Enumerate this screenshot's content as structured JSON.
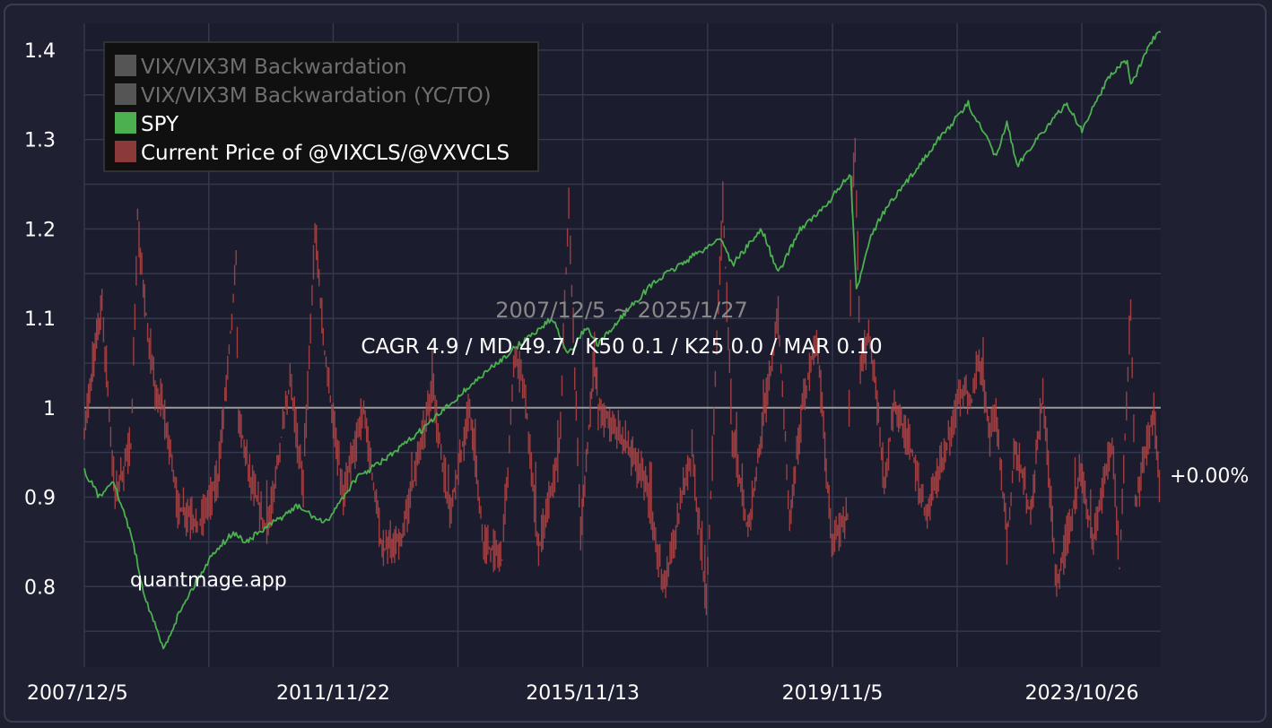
{
  "chart_data": {
    "type": "line",
    "title": "",
    "date_range": "2007/12/5 ~ 2025/1/27",
    "stats": "CAGR 4.9 / MD 49.7 / K50 0.1 / K25 0.0 / MAR 0.10",
    "watermark": "quantmage.app",
    "right_label": "+0.00%",
    "xlabel": "",
    "ylabel": "",
    "ylim": [
      0.71,
      1.43
    ],
    "yticks": [
      0.8,
      0.9,
      1,
      1.1,
      1.2,
      1.3,
      1.4
    ],
    "ytick_labels": [
      "0.8",
      "0.9",
      "1",
      "1.1",
      "1.2",
      "1.3",
      "1.4"
    ],
    "xlim": [
      "2007-12-05",
      "2025-01-27"
    ],
    "xticks": [
      "2007-12-05",
      "2011-11-22",
      "2015-11-13",
      "2019-11-05",
      "2023-10-26"
    ],
    "xtick_labels": [
      "2007/12/5",
      "2011/11/22",
      "2015/11/13",
      "2019/11/5",
      "2023/10/26"
    ],
    "reference_line": 1,
    "grid": true,
    "legend_position": "top-left",
    "legend": [
      {
        "label": "VIX/VIX3M Backwardation",
        "color": "#555555",
        "enabled": false
      },
      {
        "label": "VIX/VIX3M Backwardation (YC/TO)",
        "color": "#555555",
        "enabled": false
      },
      {
        "label": "SPY",
        "color": "#4caf50",
        "enabled": true
      },
      {
        "label": "Current Price of @VIXCLS/@VXVCLS",
        "color": "#8b3a3a",
        "enabled": true
      }
    ],
    "series": [
      {
        "name": "SPY",
        "color": "#4caf50",
        "x": [
          "2007-12-05",
          "2008-03-01",
          "2008-05-15",
          "2008-09-01",
          "2008-11-20",
          "2009-03-09",
          "2009-07-01",
          "2010-01-01",
          "2010-04-20",
          "2010-07-01",
          "2011-04-29",
          "2011-10-03",
          "2012-03-30",
          "2012-11-15",
          "2013-05-20",
          "2013-12-31",
          "2014-09-01",
          "2015-05-20",
          "2015-08-25",
          "2015-12-01",
          "2016-02-11",
          "2016-08-01",
          "2017-01-01",
          "2017-06-01",
          "2018-01-26",
          "2018-04-01",
          "2018-09-20",
          "2018-12-24",
          "2019-04-30",
          "2019-09-01",
          "2019-12-31",
          "2020-02-19",
          "2020-03-23",
          "2020-06-08",
          "2020-09-02",
          "2021-01-01",
          "2021-06-01",
          "2022-01-03",
          "2022-06-16",
          "2022-08-16",
          "2022-10-12",
          "2023-02-01",
          "2023-07-31",
          "2023-10-27",
          "2024-03-28",
          "2024-07-16",
          "2024-08-05",
          "2024-12-06",
          "2025-01-27"
        ],
        "values": [
          0.93,
          0.9,
          0.92,
          0.86,
          0.79,
          0.73,
          0.78,
          0.84,
          0.86,
          0.85,
          0.89,
          0.87,
          0.92,
          0.95,
          0.98,
          1.02,
          1.06,
          1.1,
          1.06,
          1.09,
          1.07,
          1.11,
          1.14,
          1.16,
          1.19,
          1.16,
          1.2,
          1.15,
          1.2,
          1.22,
          1.25,
          1.26,
          1.13,
          1.19,
          1.22,
          1.25,
          1.29,
          1.34,
          1.28,
          1.32,
          1.27,
          1.3,
          1.34,
          1.31,
          1.37,
          1.39,
          1.36,
          1.41,
          1.42
        ]
      },
      {
        "name": "Current Price of @VIXCLS/@VXVCLS",
        "color": "#b54444",
        "x": [
          "2007-12-05",
          "2008-01-22",
          "2008-03-17",
          "2008-06-01",
          "2008-09-01",
          "2008-10-10",
          "2008-11-20",
          "2009-01-20",
          "2009-03-09",
          "2009-06-01",
          "2009-10-01",
          "2010-01-20",
          "2010-05-06",
          "2010-05-20",
          "2010-08-01",
          "2010-11-01",
          "2011-03-16",
          "2011-06-01",
          "2011-08-08",
          "2011-10-03",
          "2012-01-20",
          "2012-05-18",
          "2012-09-01",
          "2013-01-01",
          "2013-06-20",
          "2013-10-01",
          "2014-01-24",
          "2014-04-15",
          "2014-08-01",
          "2014-10-15",
          "2014-12-16",
          "2015-03-01",
          "2015-06-29",
          "2015-08-24",
          "2015-11-01",
          "2016-01-20",
          "2016-02-11",
          "2016-06-24",
          "2016-11-04",
          "2017-03-01",
          "2017-08-10",
          "2017-11-01",
          "2018-02-05",
          "2018-04-01",
          "2018-07-01",
          "2018-10-24",
          "2018-12-24",
          "2019-03-01",
          "2019-05-13",
          "2019-08-05",
          "2019-11-01",
          "2020-02-01",
          "2020-02-27",
          "2020-03-16",
          "2020-04-15",
          "2020-06-11",
          "2020-09-01",
          "2020-10-30",
          "2021-01-27",
          "2021-05-01",
          "2021-09-01",
          "2021-11-26",
          "2022-01-24",
          "2022-03-07",
          "2022-05-09",
          "2022-06-13",
          "2022-08-16",
          "2022-10-03",
          "2023-01-01",
          "2023-03-13",
          "2023-06-01",
          "2023-10-20",
          "2024-01-01",
          "2024-04-19",
          "2024-06-01",
          "2024-08-05",
          "2024-09-01",
          "2024-12-18",
          "2025-01-27"
        ],
        "values": [
          0.97,
          1.05,
          1.11,
          0.9,
          0.96,
          1.21,
          1.12,
          1.02,
          1.0,
          0.89,
          0.87,
          0.92,
          1.16,
          0.99,
          0.92,
          0.86,
          1.03,
          0.91,
          1.2,
          1.06,
          0.9,
          1.0,
          0.84,
          0.86,
          1.02,
          0.88,
          1.0,
          0.85,
          0.83,
          1.06,
          1.01,
          0.84,
          0.95,
          1.23,
          0.86,
          1.06,
          1.0,
          0.97,
          0.92,
          0.8,
          0.95,
          0.78,
          1.23,
          0.97,
          0.86,
          1.02,
          1.1,
          0.88,
          1.0,
          1.08,
          0.85,
          0.88,
          1.24,
          1.3,
          1.05,
          1.08,
          0.92,
          1.0,
          0.96,
          0.88,
          0.96,
          1.02,
          1.01,
          1.06,
          0.97,
          0.99,
          0.85,
          0.96,
          0.88,
          1.02,
          0.8,
          0.93,
          0.85,
          0.96,
          0.82,
          1.12,
          0.89,
          1.0,
          0.89
        ]
      }
    ]
  }
}
